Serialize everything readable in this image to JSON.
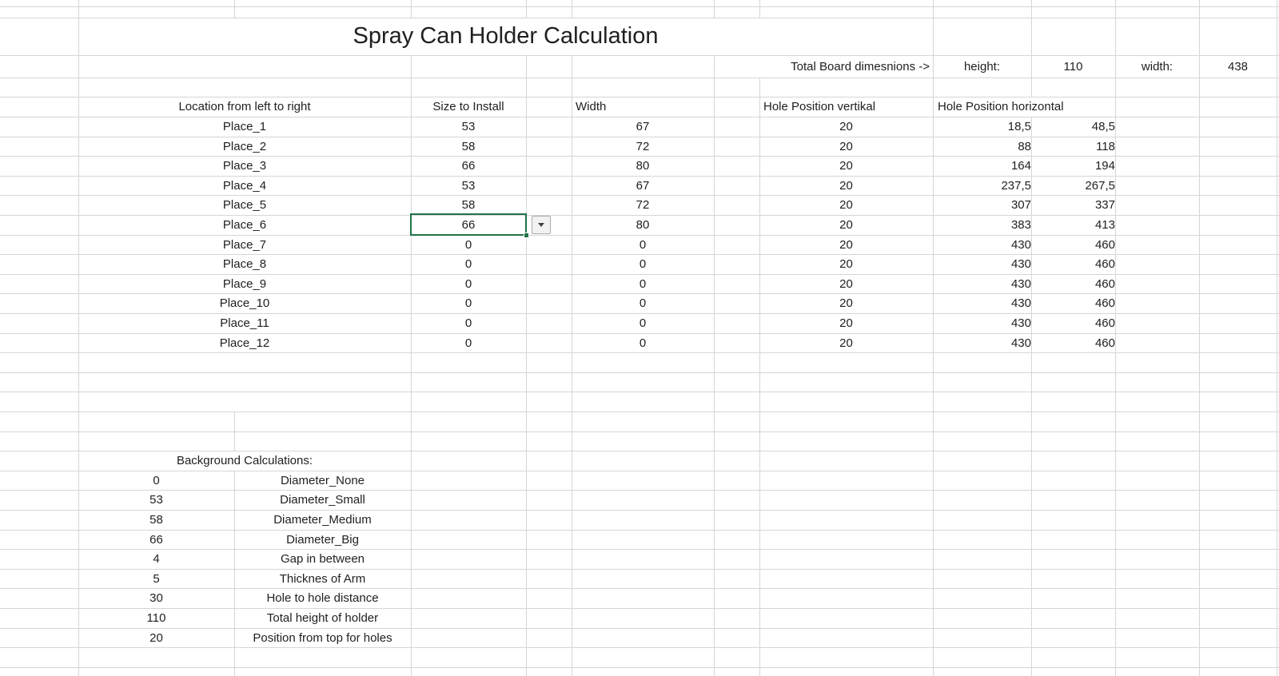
{
  "title": "Spray Can Holder Calculation",
  "board": {
    "label": "Total Board dimesnions ->",
    "height_label": "height:",
    "height_value": "110",
    "width_label": "width:",
    "width_value": "438"
  },
  "table": {
    "headers": {
      "location": "Location from left to right",
      "size": "Size to Install",
      "width": "Width",
      "hole_vertical": "Hole Position vertikal",
      "hole_horizontal": "Hole Position horizontal"
    },
    "rows": [
      {
        "place": "Place_1",
        "size": "53",
        "width": "67",
        "hole_v": "20",
        "hole_h1": "18,5",
        "hole_h2": "48,5"
      },
      {
        "place": "Place_2",
        "size": "58",
        "width": "72",
        "hole_v": "20",
        "hole_h1": "88",
        "hole_h2": "118"
      },
      {
        "place": "Place_3",
        "size": "66",
        "width": "80",
        "hole_v": "20",
        "hole_h1": "164",
        "hole_h2": "194"
      },
      {
        "place": "Place_4",
        "size": "53",
        "width": "67",
        "hole_v": "20",
        "hole_h1": "237,5",
        "hole_h2": "267,5"
      },
      {
        "place": "Place_5",
        "size": "58",
        "width": "72",
        "hole_v": "20",
        "hole_h1": "307",
        "hole_h2": "337"
      },
      {
        "place": "Place_6",
        "size": "66",
        "width": "80",
        "hole_v": "20",
        "hole_h1": "383",
        "hole_h2": "413",
        "selected": true
      },
      {
        "place": "Place_7",
        "size": "0",
        "width": "0",
        "hole_v": "20",
        "hole_h1": "430",
        "hole_h2": "460"
      },
      {
        "place": "Place_8",
        "size": "0",
        "width": "0",
        "hole_v": "20",
        "hole_h1": "430",
        "hole_h2": "460"
      },
      {
        "place": "Place_9",
        "size": "0",
        "width": "0",
        "hole_v": "20",
        "hole_h1": "430",
        "hole_h2": "460"
      },
      {
        "place": "Place_10",
        "size": "0",
        "width": "0",
        "hole_v": "20",
        "hole_h1": "430",
        "hole_h2": "460"
      },
      {
        "place": "Place_11",
        "size": "0",
        "width": "0",
        "hole_v": "20",
        "hole_h1": "430",
        "hole_h2": "460"
      },
      {
        "place": "Place_12",
        "size": "0",
        "width": "0",
        "hole_v": "20",
        "hole_h1": "430",
        "hole_h2": "460"
      }
    ]
  },
  "background_calculations": {
    "title": "Background Calculations:",
    "rows": [
      {
        "value": "0",
        "label": "Diameter_None"
      },
      {
        "value": "53",
        "label": "Diameter_Small"
      },
      {
        "value": "58",
        "label": "Diameter_Medium"
      },
      {
        "value": "66",
        "label": "Diameter_Big"
      },
      {
        "value": "4",
        "label": "Gap in between"
      },
      {
        "value": "5",
        "label": "Thicknes of Arm"
      },
      {
        "value": "30",
        "label": "Hole to hole distance"
      },
      {
        "value": "110",
        "label": "Total height of holder"
      },
      {
        "value": "20",
        "label": "Position from top for holes"
      }
    ]
  },
  "selection": {
    "cell_value": "66",
    "row": "Place_6",
    "column": "Size to Install"
  },
  "colors": {
    "selection_border": "#217346",
    "gridline": "#d6d6d6",
    "text": "#1f1f1f",
    "background": "#ffffff"
  },
  "icons": {
    "dropdown": "dropdown-arrow"
  }
}
